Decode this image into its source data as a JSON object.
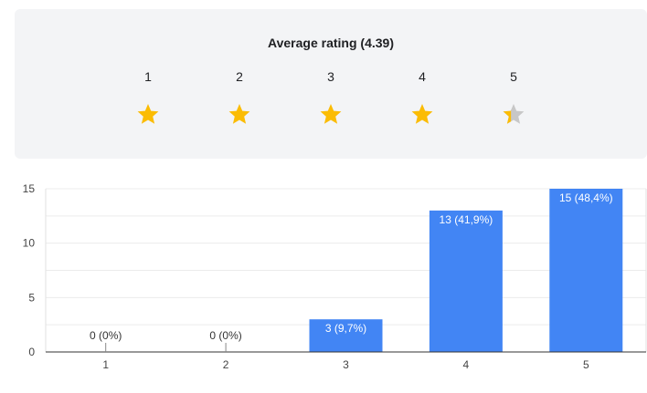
{
  "summary": {
    "title": "Average rating (4.39)",
    "average": 4.39,
    "rating_levels": [
      "1",
      "2",
      "3",
      "4",
      "5"
    ],
    "star_color": "#fbbc04",
    "empty_star_color": "#c7c7c7"
  },
  "chart_data": {
    "type": "bar",
    "categories": [
      "1",
      "2",
      "3",
      "4",
      "5"
    ],
    "values": [
      0,
      0,
      3,
      13,
      15
    ],
    "data_labels": [
      "0 (0%)",
      "0 (0%)",
      "3 (9,7%)",
      "13 (41,9%)",
      "15 (48,4%)"
    ],
    "yticks": [
      "0",
      "5",
      "10",
      "15"
    ],
    "ylim": [
      0,
      15
    ],
    "grid": true,
    "bar_color": "#4285f4"
  }
}
